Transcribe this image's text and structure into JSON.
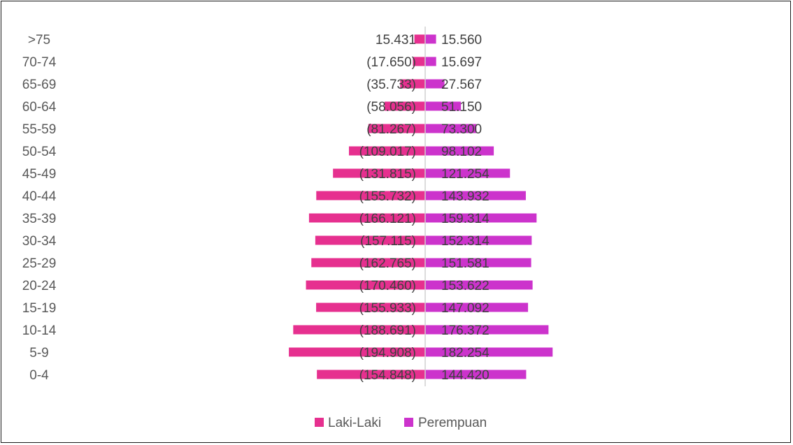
{
  "chart_data": {
    "type": "bar",
    "orientation": "horizontal",
    "layout": "population-pyramid",
    "title": "",
    "xlabel": "",
    "ylabel": "",
    "categories": [
      "0-4",
      "5-9",
      "10-14",
      "15-19",
      "20-24",
      "25-29",
      "30-34",
      "35-39",
      "40-44",
      "45-49",
      "50-54",
      "55-59",
      "60-64",
      "65-69",
      "70-74",
      ">75"
    ],
    "series": [
      {
        "name": "Laki-Laki",
        "color": "#e6308f",
        "values": [
          154848,
          194908,
          188691,
          155933,
          170460,
          162765,
          157115,
          166121,
          155732,
          131815,
          109017,
          81267,
          58056,
          35733,
          17650,
          15431
        ],
        "labels": [
          "(154.848)",
          "(194.908)",
          "(188.691)",
          "(155.933)",
          "(170.460)",
          "(162.765)",
          "(157.115)",
          "(166.121)",
          "(155.732)",
          "(131.815)",
          "(109.017)",
          "(81.267)",
          "(58.056)",
          "(35.733)",
          "(17.650)",
          "15.431"
        ]
      },
      {
        "name": "Perempuan",
        "color": "#cc33cc",
        "values": [
          144420,
          182254,
          176372,
          147092,
          153622,
          151581,
          152314,
          159314,
          143932,
          121254,
          98102,
          73300,
          51150,
          27567,
          15697,
          15560
        ],
        "labels": [
          "144.420",
          "182.254",
          "176.372",
          "147.092",
          "153.622",
          "151.581",
          "152.314",
          "159.314",
          "143.932",
          "121.254",
          "98.102",
          "73.300",
          "51.150",
          "27.567",
          "15.697",
          "15.560"
        ]
      }
    ],
    "legend_position": "bottom",
    "grid": false
  }
}
